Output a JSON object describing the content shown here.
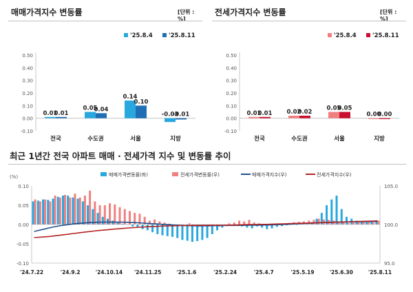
{
  "panels": {
    "left": {
      "title": "매매가격지수 변동률",
      "unit": "[단위 : %]"
    },
    "right": {
      "title": "전세가격지수 변동률",
      "unit": "[단위 : %]"
    },
    "bottom": {
      "title": "최근 1년간 전국 아파트 매매 · 전세가격 지수 및 변동률 추이"
    }
  },
  "colors": {
    "sale_prev": "#29a8e0",
    "sale_curr": "#1f6fb5",
    "rent_prev": "#f08080",
    "rent_curr": "#c8102e",
    "sale_index_line": "#1f4e8c",
    "rent_index_line": "#b22222"
  },
  "chart_data": [
    {
      "type": "bar",
      "title": "매매가격지수 변동률",
      "categories": [
        "전국",
        "수도권",
        "서울",
        "지방"
      ],
      "series": [
        {
          "name": "'25.8.4",
          "values": [
            0.01,
            0.05,
            0.14,
            -0.03
          ]
        },
        {
          "name": "'25.8.11",
          "values": [
            0.01,
            0.04,
            0.1,
            -0.01
          ]
        }
      ],
      "data_labels": [
        [
          "0.01",
          "0.05",
          "0.14",
          "-0.03"
        ],
        [
          "0.01",
          "0.04",
          "0.10",
          "-0.01"
        ]
      ],
      "ylim": [
        -0.1,
        0.5
      ],
      "yticks": [
        "0.50",
        "0.40",
        "0.30",
        "0.20",
        "0.10",
        "0.00",
        "-0.10"
      ],
      "legend": "top-right"
    },
    {
      "type": "bar",
      "title": "전세가격지수 변동률",
      "categories": [
        "전국",
        "수도권",
        "서울",
        "지방"
      ],
      "series": [
        {
          "name": "'25.8.4",
          "values": [
            0.01,
            0.02,
            0.05,
            0.0
          ]
        },
        {
          "name": "'25.8.11",
          "values": [
            0.01,
            0.02,
            0.05,
            0.0
          ]
        }
      ],
      "data_labels": [
        [
          "0.01",
          "0.02",
          "0.05",
          "0.00"
        ],
        [
          "0.01",
          "0.02",
          "0.05",
          "0.00"
        ]
      ],
      "ylim": [
        -0.1,
        0.5
      ],
      "yticks": [
        "0.50",
        "0.40",
        "0.30",
        "0.20",
        "0.10",
        "0.00",
        "-0.10"
      ],
      "legend": "top-right"
    },
    {
      "type": "bar",
      "title": "최근 1년간 전국 아파트 매매 · 전세가격 지수 및 변동률 추이",
      "x_ticks": [
        "'24.7.22",
        "'24.9.2",
        "'24.10.14",
        "'24.11.25",
        "'25.1.6",
        "'25.2.24",
        "'25.4.7",
        "'25.5.19",
        "'25.6.30",
        "'25.8.11"
      ],
      "left_axis": {
        "label": "(%)",
        "ticks": [
          "0.10",
          "0.05",
          "0.00",
          "-0.05",
          "-0.10"
        ],
        "ylim": [
          -0.1,
          0.1
        ]
      },
      "right_axis": {
        "ticks": [
          "105.0",
          "100.0",
          "95.0"
        ],
        "ylim": [
          95,
          105
        ]
      },
      "series": [
        {
          "name": "매매가격변동률(좌)",
          "type": "bar",
          "values": [
            0.06,
            0.062,
            0.065,
            0.064,
            0.067,
            0.072,
            0.075,
            0.075,
            0.07,
            0.067,
            0.06,
            0.05,
            0.04,
            0.03,
            0.02,
            0.015,
            0.01,
            0.005,
            0.002,
            0.0,
            -0.005,
            -0.008,
            -0.012,
            -0.015,
            -0.02,
            -0.025,
            -0.028,
            -0.03,
            -0.032,
            -0.035,
            -0.04,
            -0.042,
            -0.045,
            -0.043,
            -0.04,
            -0.035,
            -0.025,
            -0.015,
            -0.008,
            -0.004,
            0.0,
            -0.002,
            -0.005,
            -0.008,
            -0.01,
            -0.005,
            -0.008,
            -0.012,
            -0.01,
            -0.006,
            -0.004,
            -0.002,
            0.001,
            0.0,
            0.002,
            0.004,
            0.006,
            0.015,
            0.03,
            0.05,
            0.065,
            0.075,
            0.04,
            0.02,
            0.015,
            0.01,
            0.008,
            0.006,
            0.009,
            0.01
          ]
        },
        {
          "name": "전세가격변동률(우)",
          "type": "bar",
          "values": [
            0.065,
            0.06,
            0.065,
            0.06,
            0.075,
            0.07,
            0.077,
            0.07,
            0.08,
            0.07,
            0.075,
            0.088,
            0.06,
            0.05,
            0.05,
            0.055,
            0.052,
            0.045,
            0.04,
            0.035,
            0.03,
            0.028,
            0.02,
            0.01,
            0.013,
            0.008,
            0.005,
            0.002,
            0.0,
            -0.002,
            0.0,
            0.003,
            0.0,
            -0.005,
            -0.002,
            -0.005,
            -0.004,
            -0.005,
            -0.003,
            0.003,
            0.005,
            0.01,
            0.008,
            0.012,
            0.005,
            0.003,
            0.0,
            -0.002,
            0.0,
            0.002,
            0.003,
            0.004,
            0.006,
            0.007,
            0.008,
            0.01,
            0.012,
            0.015,
            0.013,
            0.012,
            0.01,
            0.008,
            0.006,
            0.004,
            0.005,
            0.006,
            0.007,
            0.008,
            0.005,
            0.01
          ]
        },
        {
          "name": "매매가격지수(우)",
          "type": "line",
          "values": [
            99.1,
            99.25,
            99.4,
            99.55,
            99.7,
            99.82,
            99.92,
            100.0,
            100.08,
            100.15,
            100.2,
            100.25,
            100.28,
            100.3,
            100.31,
            100.32,
            100.32,
            100.31,
            100.3,
            100.28,
            100.25,
            100.22,
            100.18,
            100.14,
            100.1,
            100.06,
            100.02,
            99.98,
            99.94,
            99.9,
            99.87,
            99.85,
            99.84,
            99.83,
            99.83,
            99.84,
            99.85,
            99.86,
            99.87,
            99.88,
            99.88,
            99.88,
            99.89,
            99.9,
            99.91,
            99.92,
            99.93,
            99.94,
            99.96,
            99.98,
            100.0,
            100.03,
            100.06,
            100.1,
            100.13,
            100.16,
            100.19,
            100.22,
            100.25,
            100.28,
            100.3,
            100.32,
            100.33,
            100.34,
            100.35,
            100.36,
            100.37,
            100.38,
            100.38,
            100.39
          ]
        },
        {
          "name": "전세가격지수(우)",
          "type": "line",
          "values": [
            98.3,
            98.35,
            98.4,
            98.45,
            98.52,
            98.6,
            98.68,
            98.76,
            98.84,
            98.92,
            99.0,
            99.08,
            99.15,
            99.22,
            99.28,
            99.34,
            99.4,
            99.45,
            99.5,
            99.55,
            99.6,
            99.64,
            99.68,
            99.71,
            99.74,
            99.77,
            99.8,
            99.82,
            99.84,
            99.86,
            99.87,
            99.88,
            99.89,
            99.89,
            99.89,
            99.9,
            99.9,
            99.9,
            99.91,
            99.92,
            99.93,
            99.95,
            99.97,
            99.99,
            100.0,
            100.01,
            100.02,
            100.03,
            100.05,
            100.07,
            100.09,
            100.11,
            100.13,
            100.15,
            100.17,
            100.19,
            100.21,
            100.23,
            100.25,
            100.27,
            100.29,
            100.31,
            100.33,
            100.35,
            100.37,
            100.39,
            100.41,
            100.43,
            100.45,
            100.47
          ]
        }
      ],
      "legend": "top"
    }
  ]
}
